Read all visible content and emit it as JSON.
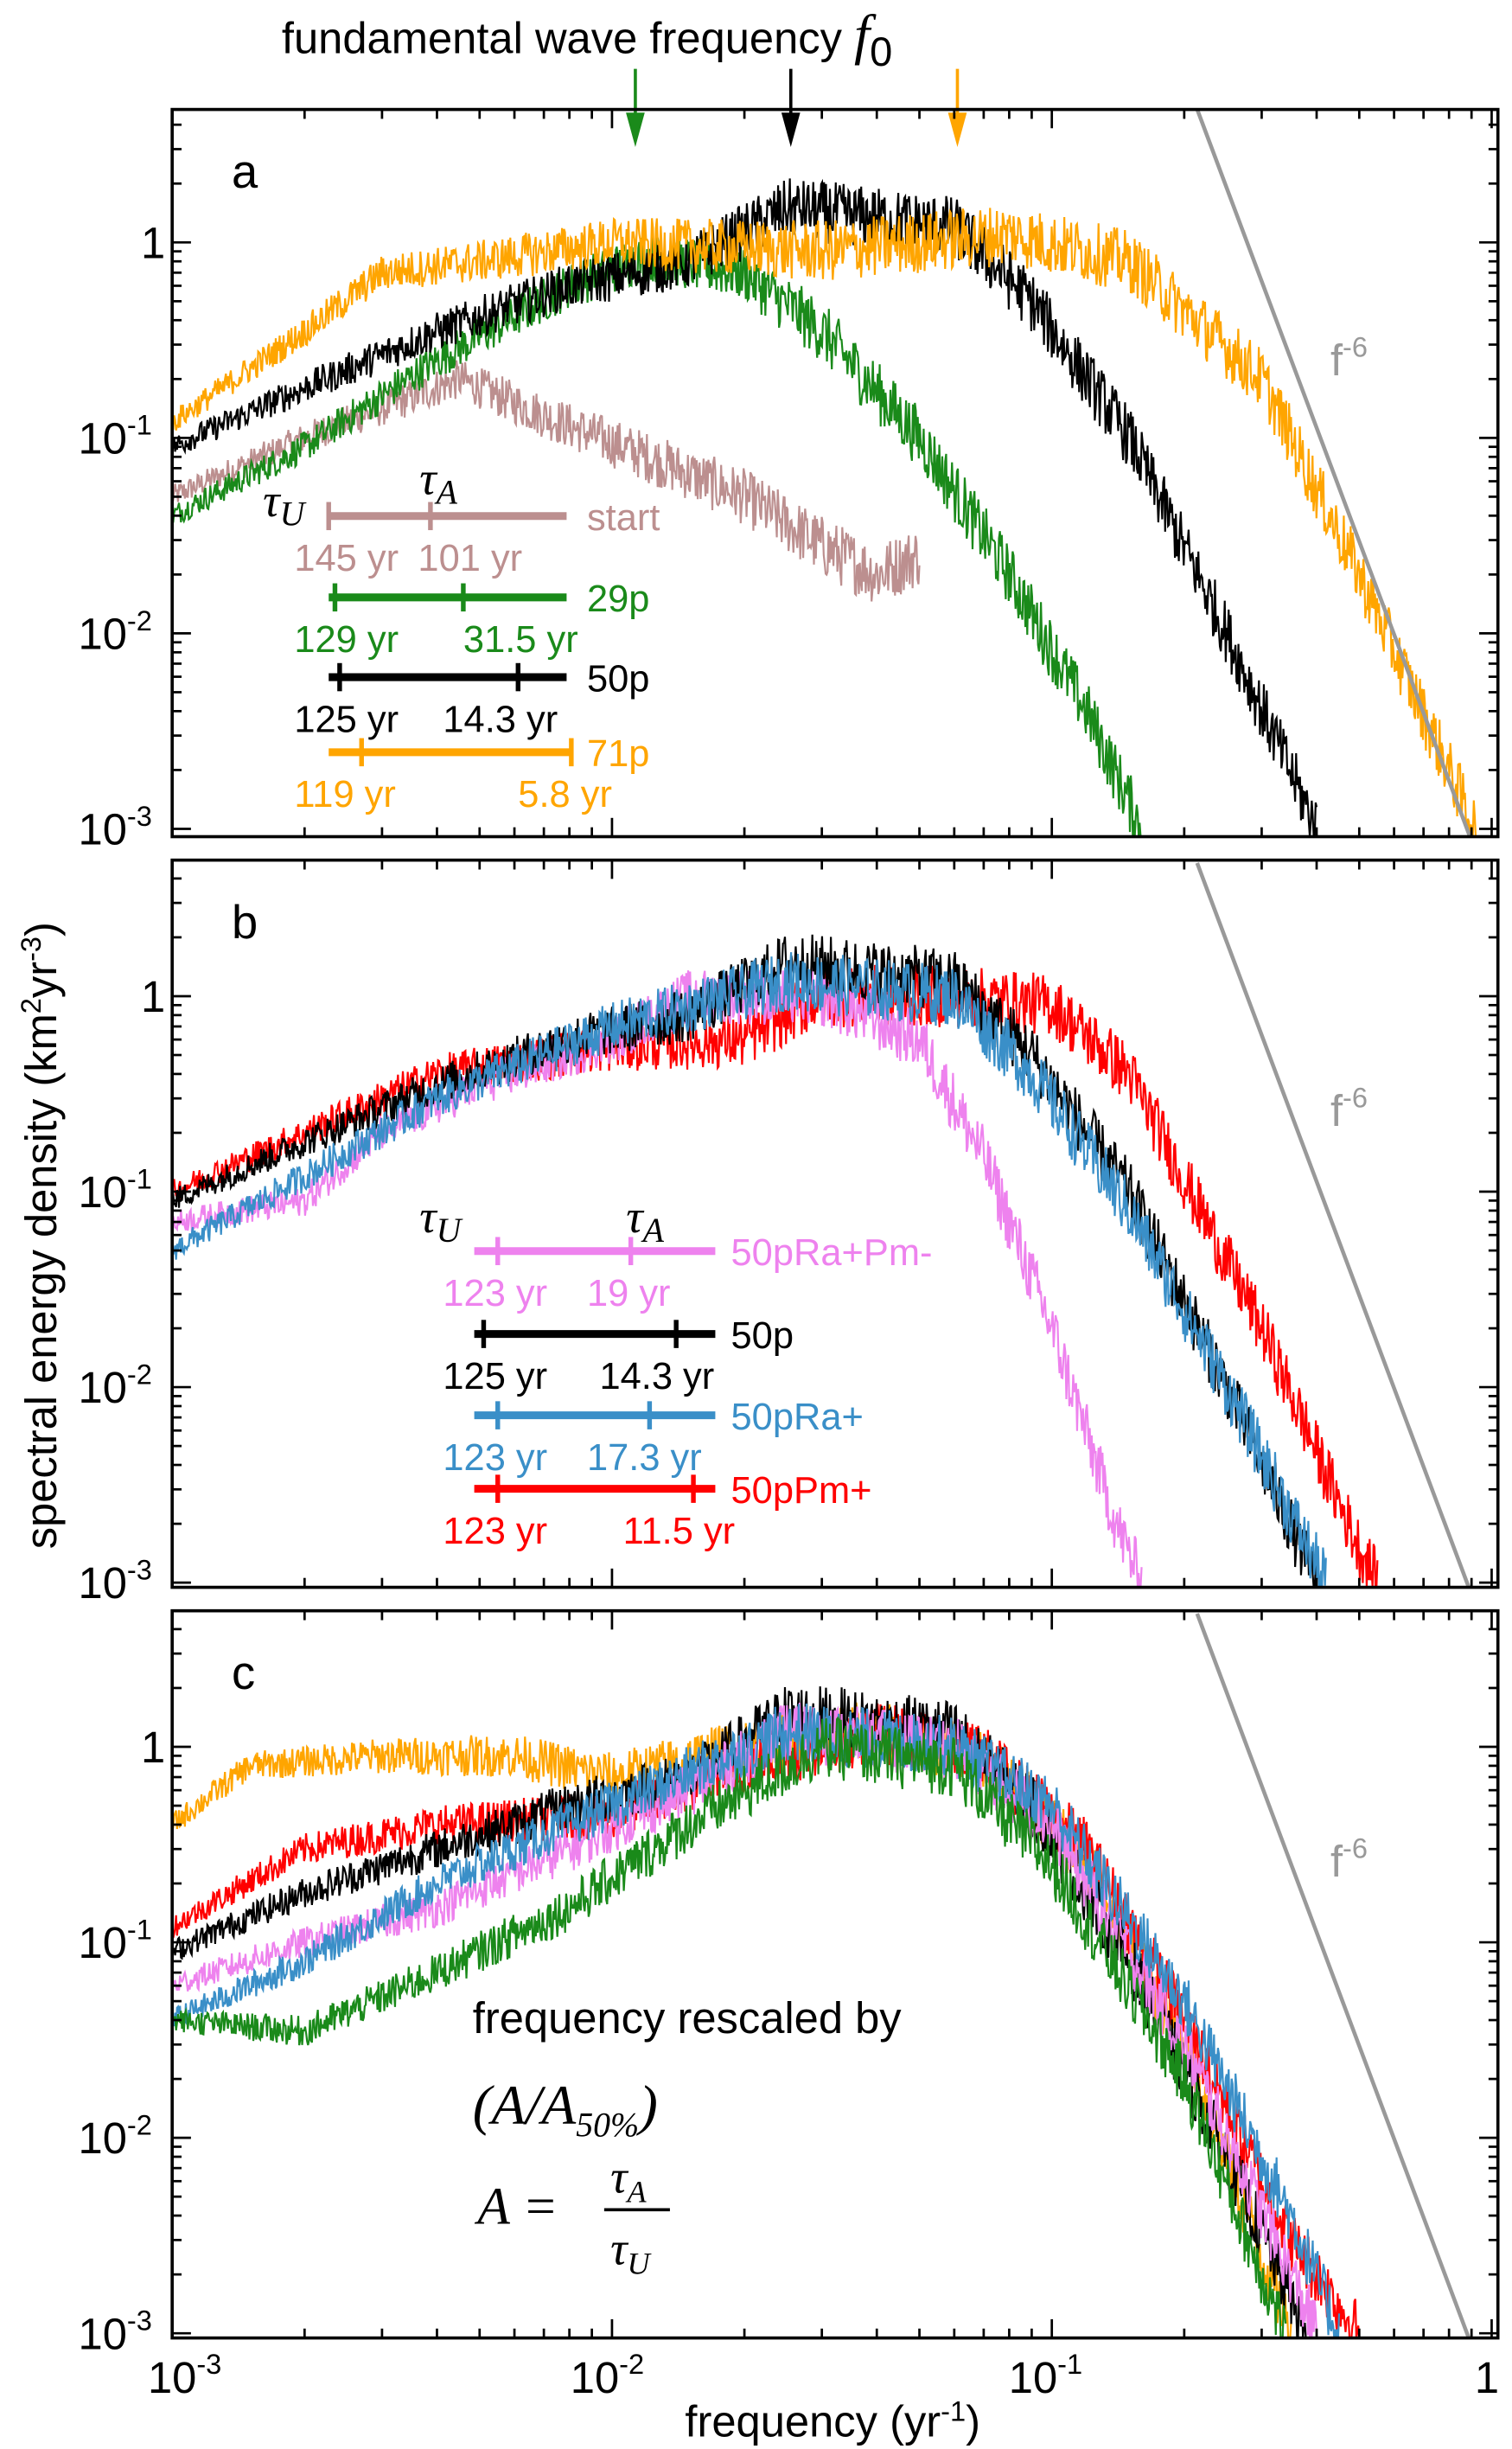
{
  "title": {
    "text": "fundamental wave frequency ",
    "symbol": "f",
    "sub": "0"
  },
  "arrows": [
    {
      "f": 0.0113,
      "color": "#1a8a1a"
    },
    {
      "f": 0.0255,
      "color": "#000000"
    },
    {
      "f": 0.061,
      "color": "#ffa500"
    }
  ],
  "xlabel": {
    "text": "frequency (yr",
    "sup": "-1",
    "close": ")"
  },
  "ylabel": {
    "text": "spectral energy density (km",
    "sup1": "2",
    "mid": "yr",
    "sup2": "-3",
    "close": ")"
  },
  "xticks": [
    {
      "base": "10",
      "exp": "-3"
    },
    {
      "base": "10",
      "exp": "-2"
    },
    {
      "base": "10",
      "exp": "-1"
    },
    {
      "base": "1",
      "exp": ""
    }
  ],
  "yticks": [
    {
      "base": "1",
      "exp": ""
    },
    {
      "base": "10",
      "exp": "-1"
    },
    {
      "base": "10",
      "exp": "-2"
    },
    {
      "base": "10",
      "exp": "-3"
    }
  ],
  "powerlaw": {
    "base": "f",
    "exp": "-6",
    "color": "#999999",
    "slope": -6
  },
  "tau_labels": {
    "u": "τ",
    "u_sub": "U",
    "a": "τ",
    "a_sub": "A"
  },
  "panel_c_note": {
    "line1": "frequency rescaled by",
    "line2_open": "(A/A",
    "line2_sub": "50%",
    "line2_close": ")",
    "eq_lhs": "A =",
    "eq_num": "τ",
    "eq_num_sub": "A",
    "eq_den": "τ",
    "eq_den_sub": "U"
  },
  "chart_data": [
    {
      "type": "line",
      "panel": "a",
      "xscale": "log",
      "yscale": "log",
      "xlim": [
        0.001,
        1.03
      ],
      "ylim": [
        0.0009,
        4.8
      ],
      "grid": false,
      "legend": [
        {
          "name": "start",
          "color": "#bc8f8f",
          "tau_u": "145 yr",
          "tau_a": "101 yr"
        },
        {
          "name": "29p",
          "color": "#1a8a1a",
          "tau_u": "129 yr",
          "tau_a": "31.5 yr"
        },
        {
          "name": "50p",
          "color": "#000000",
          "tau_u": "125 yr",
          "tau_a": "14.3 yr"
        },
        {
          "name": "71p",
          "color": "#ffa500",
          "tau_u": "119 yr",
          "tau_a": "5.8 yr"
        }
      ],
      "series": [
        {
          "name": "start",
          "color": "#bc8f8f",
          "points": [
            [
              0.001,
              0.05
            ],
            [
              0.002,
              0.1
            ],
            [
              0.0045,
              0.2
            ],
            [
              0.007,
              0.13
            ],
            [
              0.012,
              0.08
            ],
            [
              0.02,
              0.05
            ],
            [
              0.03,
              0.028
            ],
            [
              0.04,
              0.02
            ],
            [
              0.05,
              0.025
            ]
          ]
        },
        {
          "name": "29p",
          "color": "#1a8a1a",
          "points": [
            [
              0.001,
              0.04
            ],
            [
              0.002,
              0.09
            ],
            [
              0.004,
              0.25
            ],
            [
              0.008,
              0.6
            ],
            [
              0.012,
              0.85
            ],
            [
              0.02,
              0.7
            ],
            [
              0.03,
              0.35
            ],
            [
              0.05,
              0.1
            ],
            [
              0.08,
              0.02
            ],
            [
              0.12,
              0.004
            ],
            [
              0.16,
              0.001
            ]
          ]
        },
        {
          "name": "50p",
          "color": "#000000",
          "points": [
            [
              0.001,
              0.09
            ],
            [
              0.002,
              0.18
            ],
            [
              0.004,
              0.35
            ],
            [
              0.008,
              0.6
            ],
            [
              0.015,
              0.8
            ],
            [
              0.025,
              1.5
            ],
            [
              0.06,
              1.2
            ],
            [
              0.09,
              0.5
            ],
            [
              0.15,
              0.1
            ],
            [
              0.25,
              0.01
            ],
            [
              0.4,
              0.001
            ]
          ]
        },
        {
          "name": "71p",
          "color": "#ffa500",
          "points": [
            [
              0.001,
              0.12
            ],
            [
              0.002,
              0.35
            ],
            [
              0.003,
              0.7
            ],
            [
              0.005,
              0.8
            ],
            [
              0.01,
              1.0
            ],
            [
              0.03,
              0.9
            ],
            [
              0.08,
              1.1
            ],
            [
              0.15,
              0.8
            ],
            [
              0.3,
              0.2
            ],
            [
              0.5,
              0.02
            ],
            [
              0.8,
              0.002
            ],
            [
              0.92,
              0.001
            ]
          ]
        }
      ]
    },
    {
      "type": "line",
      "panel": "b",
      "xscale": "log",
      "yscale": "log",
      "xlim": [
        0.001,
        1.03
      ],
      "ylim": [
        0.0009,
        4.8
      ],
      "grid": false,
      "legend": [
        {
          "name": "50pRa+Pm-",
          "color": "#ee82ee",
          "tau_u": "123 yr",
          "tau_a": "19 yr"
        },
        {
          "name": "50p",
          "color": "#000000",
          "tau_u": "125 yr",
          "tau_a": "14.3 yr"
        },
        {
          "name": "50pRa+",
          "color": "#3a8fc8",
          "tau_u": "123 yr",
          "tau_a": "17.3 yr"
        },
        {
          "name": "50pPm+",
          "color": "#ff0000",
          "tau_u": "123 yr",
          "tau_a": "11.5 yr"
        }
      ],
      "series": [
        {
          "name": "50pPm+",
          "color": "#ff0000",
          "points": [
            [
              0.001,
              0.1
            ],
            [
              0.002,
              0.2
            ],
            [
              0.004,
              0.4
            ],
            [
              0.01,
              0.55
            ],
            [
              0.02,
              0.6
            ],
            [
              0.03,
              1.0
            ],
            [
              0.06,
              1.0
            ],
            [
              0.1,
              0.9
            ],
            [
              0.15,
              0.4
            ],
            [
              0.3,
              0.02
            ],
            [
              0.5,
              0.0015
            ],
            [
              0.55,
              0.001
            ]
          ]
        },
        {
          "name": "50pRa+Pm-",
          "color": "#ee82ee",
          "points": [
            [
              0.001,
              0.07
            ],
            [
              0.002,
              0.09
            ],
            [
              0.003,
              0.2
            ],
            [
              0.005,
              0.35
            ],
            [
              0.01,
              0.6
            ],
            [
              0.015,
              1.0
            ],
            [
              0.022,
              1.0
            ],
            [
              0.03,
              1.0
            ],
            [
              0.05,
              0.6
            ],
            [
              0.07,
              0.15
            ],
            [
              0.1,
              0.02
            ],
            [
              0.14,
              0.002
            ],
            [
              0.16,
              0.001
            ]
          ]
        },
        {
          "name": "50p",
          "color": "#000000",
          "points": [
            [
              0.001,
              0.09
            ],
            [
              0.002,
              0.18
            ],
            [
              0.004,
              0.35
            ],
            [
              0.008,
              0.6
            ],
            [
              0.015,
              0.8
            ],
            [
              0.025,
              1.5
            ],
            [
              0.06,
              1.2
            ],
            [
              0.09,
              0.5
            ],
            [
              0.15,
              0.1
            ],
            [
              0.25,
              0.01
            ],
            [
              0.4,
              0.001
            ]
          ]
        },
        {
          "name": "50pRa+",
          "color": "#3a8fc8",
          "points": [
            [
              0.001,
              0.05
            ],
            [
              0.002,
              0.12
            ],
            [
              0.004,
              0.3
            ],
            [
              0.01,
              0.7
            ],
            [
              0.025,
              1.2
            ],
            [
              0.06,
              1.0
            ],
            [
              0.09,
              0.4
            ],
            [
              0.15,
              0.08
            ],
            [
              0.25,
              0.01
            ],
            [
              0.42,
              0.001
            ]
          ]
        }
      ]
    },
    {
      "type": "line",
      "panel": "c",
      "xscale": "log",
      "yscale": "log",
      "xlim": [
        0.001,
        1.03
      ],
      "ylim": [
        0.0009,
        4.8
      ],
      "grid": false,
      "series": [
        {
          "name": "71p",
          "color": "#ffa500",
          "points": [
            [
              0.001,
              0.4
            ],
            [
              0.0015,
              0.8
            ],
            [
              0.003,
              0.9
            ],
            [
              0.006,
              0.9
            ],
            [
              0.01,
              0.7
            ],
            [
              0.02,
              1.0
            ],
            [
              0.04,
              1.2
            ],
            [
              0.07,
              0.9
            ],
            [
              0.12,
              0.25
            ],
            [
              0.2,
              0.03
            ],
            [
              0.35,
              0.001
            ]
          ]
        },
        {
          "name": "50pPm+",
          "color": "#ff0000",
          "points": [
            [
              0.001,
              0.12
            ],
            [
              0.002,
              0.3
            ],
            [
              0.004,
              0.4
            ],
            [
              0.01,
              0.45
            ],
            [
              0.02,
              0.8
            ],
            [
              0.04,
              1.2
            ],
            [
              0.07,
              0.9
            ],
            [
              0.12,
              0.3
            ],
            [
              0.2,
              0.04
            ],
            [
              0.35,
              0.003
            ],
            [
              0.5,
              0.001
            ]
          ]
        },
        {
          "name": "50p",
          "color": "#000000",
          "points": [
            [
              0.001,
              0.09
            ],
            [
              0.002,
              0.18
            ],
            [
              0.004,
              0.3
            ],
            [
              0.008,
              0.5
            ],
            [
              0.015,
              0.7
            ],
            [
              0.025,
              1.5
            ],
            [
              0.06,
              1.2
            ],
            [
              0.09,
              0.5
            ],
            [
              0.15,
              0.08
            ],
            [
              0.25,
              0.008
            ],
            [
              0.38,
              0.001
            ]
          ]
        },
        {
          "name": "50pRa+Pm-",
          "color": "#ee82ee",
          "points": [
            [
              0.001,
              0.06
            ],
            [
              0.002,
              0.1
            ],
            [
              0.004,
              0.15
            ],
            [
              0.008,
              0.3
            ],
            [
              0.015,
              0.6
            ],
            [
              0.025,
              1.2
            ],
            [
              0.06,
              1.0
            ],
            [
              0.1,
              0.4
            ],
            [
              0.2,
              0.03
            ],
            [
              0.35,
              0.002
            ],
            [
              0.4,
              0.001
            ]
          ]
        },
        {
          "name": "50pRa+",
          "color": "#3a8fc8",
          "points": [
            [
              0.001,
              0.04
            ],
            [
              0.002,
              0.08
            ],
            [
              0.004,
              0.2
            ],
            [
              0.01,
              0.5
            ],
            [
              0.025,
              1.2
            ],
            [
              0.06,
              1.0
            ],
            [
              0.1,
              0.5
            ],
            [
              0.2,
              0.05
            ],
            [
              0.35,
              0.004
            ],
            [
              0.45,
              0.001
            ]
          ]
        },
        {
          "name": "29p",
          "color": "#1a8a1a",
          "points": [
            [
              0.001,
              0.04
            ],
            [
              0.002,
              0.035
            ],
            [
              0.004,
              0.07
            ],
            [
              0.008,
              0.15
            ],
            [
              0.015,
              0.4
            ],
            [
              0.03,
              1.0
            ],
            [
              0.06,
              0.8
            ],
            [
              0.1,
              0.25
            ],
            [
              0.2,
              0.02
            ],
            [
              0.3,
              0.002
            ],
            [
              0.34,
              0.001
            ]
          ]
        }
      ]
    }
  ]
}
